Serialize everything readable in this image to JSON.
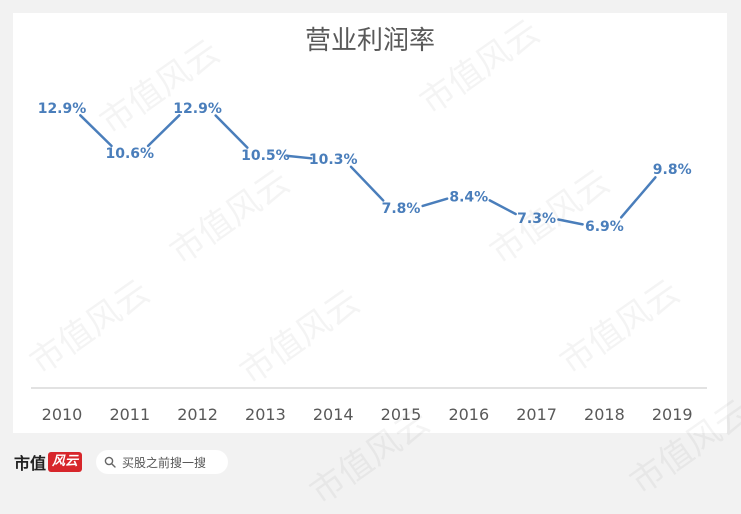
{
  "chart_data": {
    "type": "line",
    "title": "营业利润率",
    "categories": [
      "2010",
      "2011",
      "2012",
      "2013",
      "2014",
      "2015",
      "2016",
      "2017",
      "2018",
      "2019"
    ],
    "series": [
      {
        "values": [
          12.9,
          10.6,
          12.9,
          10.5,
          10.3,
          7.8,
          8.4,
          7.3,
          6.9,
          9.8
        ]
      }
    ],
    "data_labels": [
      "12.9%",
      "10.6%",
      "12.9%",
      "10.5%",
      "10.3%",
      "7.8%",
      "8.4%",
      "7.3%",
      "6.9%",
      "9.8%"
    ],
    "ylim": [
      0,
      15
    ],
    "grid": false,
    "line_color": "#4a7ebb"
  },
  "watermark": {
    "text": "市值风云"
  },
  "footer": {
    "brand_text": "市值",
    "brand_mark": "风云",
    "search_icon": "search-icon",
    "search_text": "买股之前搜一搜"
  }
}
